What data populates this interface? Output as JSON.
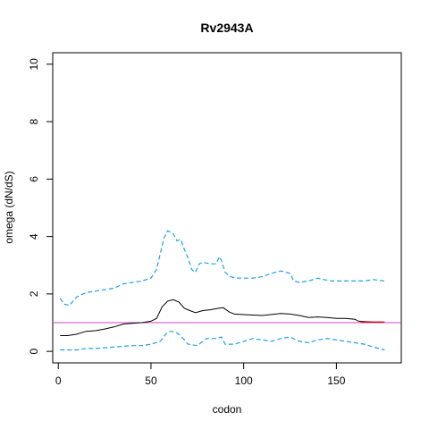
{
  "chart_data": {
    "type": "line",
    "title": "Rv2943A",
    "xlabel": "codon",
    "ylabel": "omega (dN/dS)",
    "xlim": [
      -3,
      185
    ],
    "ylim": [
      -0.4,
      10.4
    ],
    "xticks": [
      0,
      50,
      100,
      150
    ],
    "yticks": [
      0,
      2,
      4,
      6,
      8,
      10
    ],
    "grid": false,
    "reference_line": {
      "y": 1,
      "color": "#cc44cc"
    },
    "colors": {
      "omega": "#000000",
      "ci": "#1ea0e6",
      "highlight": "#cc0000"
    },
    "series": [
      {
        "style": "solid",
        "x": [
          1,
          5,
          10,
          15,
          20,
          25,
          30,
          35,
          40,
          45,
          50,
          53,
          56,
          59,
          62,
          65,
          68,
          71,
          74,
          78,
          82,
          86,
          89,
          92,
          95,
          100,
          110,
          120,
          125,
          130,
          135,
          140,
          145,
          150,
          155,
          160,
          162,
          165,
          170,
          175
        ],
        "y": [
          0.55,
          0.55,
          0.6,
          0.7,
          0.72,
          0.78,
          0.85,
          0.95,
          0.98,
          1.0,
          1.05,
          1.15,
          1.55,
          1.75,
          1.8,
          1.72,
          1.5,
          1.42,
          1.35,
          1.42,
          1.45,
          1.5,
          1.52,
          1.38,
          1.3,
          1.28,
          1.25,
          1.32,
          1.3,
          1.25,
          1.18,
          1.2,
          1.18,
          1.15,
          1.15,
          1.12,
          1.05,
          1.04,
          1.02,
          1.02
        ]
      },
      {
        "style": "dashed",
        "x": [
          1,
          3,
          6,
          10,
          15,
          20,
          30,
          35,
          40,
          45,
          50,
          53,
          55,
          57,
          59,
          62,
          64,
          66,
          68,
          70,
          72,
          74,
          76,
          78,
          82,
          85,
          87,
          88,
          90,
          93,
          96,
          100,
          105,
          110,
          115,
          120,
          125,
          127,
          130,
          135,
          140,
          143,
          148,
          155,
          160,
          165,
          170,
          176
        ],
        "y": [
          1.85,
          1.65,
          1.6,
          1.9,
          2.05,
          2.1,
          2.2,
          2.35,
          2.4,
          2.45,
          2.55,
          2.85,
          3.4,
          3.95,
          4.2,
          4.1,
          3.85,
          3.9,
          3.55,
          3.25,
          2.85,
          2.75,
          3.05,
          3.1,
          3.05,
          3.05,
          3.3,
          3.15,
          2.75,
          2.6,
          2.55,
          2.55,
          2.55,
          2.6,
          2.72,
          2.8,
          2.72,
          2.45,
          2.4,
          2.45,
          2.55,
          2.5,
          2.45,
          2.45,
          2.45,
          2.45,
          2.5,
          2.45
        ]
      },
      {
        "style": "dashed",
        "x": [
          1,
          5,
          10,
          15,
          20,
          30,
          40,
          45,
          50,
          55,
          58,
          60,
          63,
          66,
          70,
          75,
          80,
          85,
          88,
          90,
          95,
          100,
          105,
          110,
          115,
          120,
          125,
          130,
          135,
          140,
          145,
          150,
          155,
          160,
          165,
          170,
          176
        ],
        "y": [
          0.05,
          0.05,
          0.05,
          0.1,
          0.1,
          0.15,
          0.2,
          0.2,
          0.25,
          0.35,
          0.6,
          0.7,
          0.68,
          0.55,
          0.25,
          0.2,
          0.45,
          0.45,
          0.5,
          0.25,
          0.25,
          0.35,
          0.45,
          0.4,
          0.35,
          0.45,
          0.5,
          0.35,
          0.3,
          0.4,
          0.45,
          0.4,
          0.35,
          0.3,
          0.25,
          0.15,
          0.05
        ]
      },
      {
        "style": "solid",
        "x": [
          163,
          168,
          173,
          176
        ],
        "y": [
          1.03,
          1.02,
          1.02,
          1.02
        ]
      }
    ]
  }
}
